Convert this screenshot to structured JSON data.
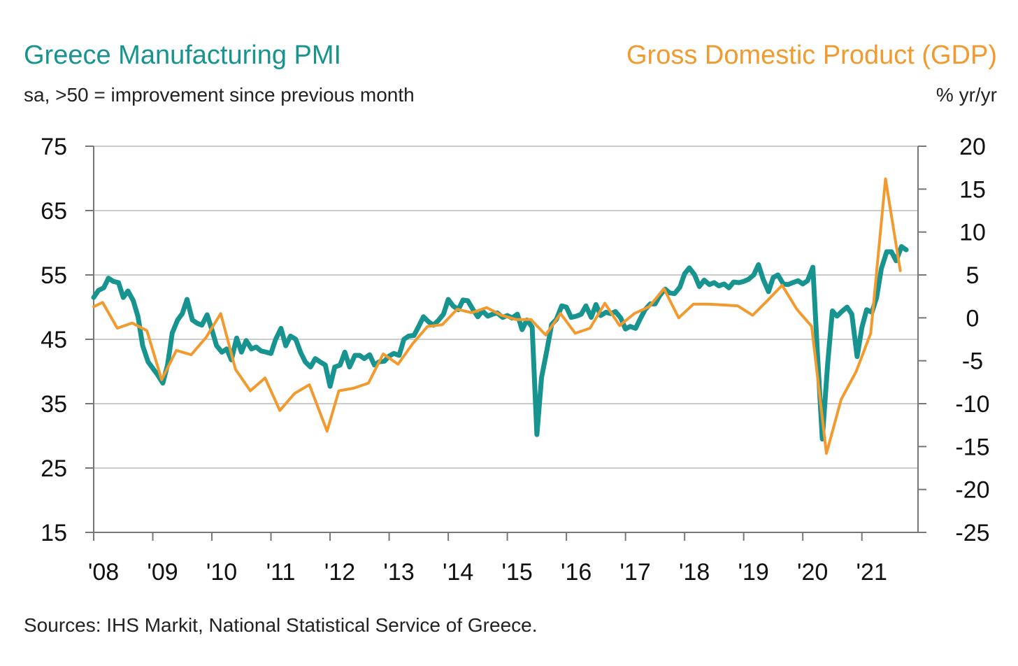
{
  "header": {
    "left_title": "Greece Manufacturing PMI",
    "left_subtitle": "sa, >50 = improvement since previous month",
    "right_title": "Gross Domestic Product (GDP)",
    "right_subtitle": "% yr/yr"
  },
  "footer": {
    "sources": "Sources: IHS Markit, National Statistical Service of Greece."
  },
  "colors": {
    "pmi": "#17948f",
    "gdp": "#f29a2e",
    "grid": "#cccccc",
    "axis": "#777777"
  },
  "chart_data": {
    "type": "line",
    "x_unit": "year (decimal)",
    "xlim": [
      2008.0,
      2021.95
    ],
    "x_ticks": [
      {
        "value": 2008,
        "label": "'08"
      },
      {
        "value": 2009,
        "label": "'09"
      },
      {
        "value": 2010,
        "label": "'10"
      },
      {
        "value": 2011,
        "label": "'11"
      },
      {
        "value": 2012,
        "label": "'12"
      },
      {
        "value": 2013,
        "label": "'13"
      },
      {
        "value": 2014,
        "label": "'14"
      },
      {
        "value": 2015,
        "label": "'15"
      },
      {
        "value": 2016,
        "label": "'16"
      },
      {
        "value": 2017,
        "label": "'17"
      },
      {
        "value": 2018,
        "label": "'18"
      },
      {
        "value": 2019,
        "label": "'19"
      },
      {
        "value": 2020,
        "label": "'20"
      },
      {
        "value": 2021,
        "label": "'21"
      }
    ],
    "y_left": {
      "lim": [
        15,
        75
      ],
      "ticks": [
        15,
        25,
        35,
        45,
        55,
        65,
        75
      ]
    },
    "y_right": {
      "lim": [
        -25,
        20
      ],
      "ticks": [
        -25,
        -20,
        -15,
        -10,
        -5,
        0,
        5,
        10,
        15,
        20
      ]
    },
    "grid": true,
    "series": [
      {
        "name": "Greece Manufacturing PMI",
        "axis": "left",
        "x": [
          2008.0,
          2008.08,
          2008.17,
          2008.25,
          2008.33,
          2008.42,
          2008.5,
          2008.58,
          2008.67,
          2008.75,
          2008.83,
          2008.92,
          2009.0,
          2009.08,
          2009.17,
          2009.25,
          2009.33,
          2009.42,
          2009.5,
          2009.58,
          2009.67,
          2009.75,
          2009.83,
          2009.92,
          2010.0,
          2010.08,
          2010.17,
          2010.25,
          2010.33,
          2010.42,
          2010.5,
          2010.58,
          2010.67,
          2010.75,
          2010.83,
          2010.92,
          2011.0,
          2011.08,
          2011.17,
          2011.25,
          2011.33,
          2011.42,
          2011.5,
          2011.58,
          2011.67,
          2011.75,
          2011.83,
          2011.92,
          2012.0,
          2012.08,
          2012.17,
          2012.25,
          2012.33,
          2012.42,
          2012.5,
          2012.58,
          2012.67,
          2012.75,
          2012.83,
          2012.92,
          2013.0,
          2013.08,
          2013.17,
          2013.25,
          2013.33,
          2013.42,
          2013.5,
          2013.58,
          2013.67,
          2013.75,
          2013.83,
          2013.92,
          2014.0,
          2014.08,
          2014.17,
          2014.25,
          2014.33,
          2014.42,
          2014.5,
          2014.58,
          2014.67,
          2014.75,
          2014.83,
          2014.92,
          2015.0,
          2015.08,
          2015.17,
          2015.25,
          2015.33,
          2015.42,
          2015.5,
          2015.58,
          2015.67,
          2015.75,
          2015.83,
          2015.92,
          2016.0,
          2016.08,
          2016.17,
          2016.25,
          2016.33,
          2016.42,
          2016.5,
          2016.58,
          2016.67,
          2016.75,
          2016.83,
          2016.92,
          2017.0,
          2017.08,
          2017.17,
          2017.25,
          2017.33,
          2017.42,
          2017.5,
          2017.58,
          2017.67,
          2017.75,
          2017.83,
          2017.92,
          2018.0,
          2018.08,
          2018.17,
          2018.25,
          2018.33,
          2018.42,
          2018.5,
          2018.58,
          2018.67,
          2018.75,
          2018.83,
          2018.92,
          2019.0,
          2019.08,
          2019.17,
          2019.25,
          2019.33,
          2019.42,
          2019.5,
          2019.58,
          2019.67,
          2019.75,
          2019.83,
          2019.92,
          2020.0,
          2020.08,
          2020.17,
          2020.25,
          2020.33,
          2020.42,
          2020.5,
          2020.58,
          2020.67,
          2020.75,
          2020.83,
          2020.92,
          2021.0,
          2021.08,
          2021.17,
          2021.25,
          2021.33,
          2021.42,
          2021.5,
          2021.58,
          2021.67,
          2021.75
        ],
        "y": [
          51.5,
          52.6,
          53.0,
          54.5,
          54.0,
          53.8,
          51.5,
          52.5,
          51.0,
          48.5,
          44.0,
          41.5,
          40.5,
          39.5,
          38.2,
          41.0,
          46.0,
          48.0,
          49.0,
          51.2,
          48.0,
          47.5,
          47.2,
          48.8,
          46.5,
          44.0,
          43.0,
          43.5,
          41.8,
          45.2,
          43.0,
          44.8,
          43.5,
          43.8,
          43.2,
          43.0,
          42.8,
          45.0,
          46.7,
          44.0,
          45.5,
          45.0,
          43.0,
          41.5,
          40.7,
          42.0,
          41.5,
          41.0,
          37.7,
          40.7,
          41.0,
          43.0,
          40.7,
          42.5,
          42.5,
          42.0,
          42.6,
          41.0,
          41.5,
          41.6,
          42.4,
          42.8,
          42.5,
          45.0,
          45.5,
          45.6,
          47.0,
          48.5,
          47.7,
          47.2,
          47.9,
          48.9,
          51.2,
          50.2,
          49.6,
          51.1,
          51.0,
          49.6,
          48.5,
          49.4,
          48.6,
          48.9,
          49.1,
          48.4,
          48.7,
          48.3,
          48.9,
          46.5,
          48.0,
          46.9,
          30.2,
          39.1,
          43.3,
          47.3,
          48.1,
          50.2,
          50.0,
          48.4,
          48.6,
          48.9,
          50.2,
          48.4,
          50.4,
          48.7,
          49.2,
          49.0,
          49.3,
          48.3,
          46.6,
          47.0,
          46.7,
          48.2,
          49.6,
          50.5,
          50.5,
          51.8,
          52.8,
          52.2,
          52.1,
          53.1,
          55.2,
          56.1,
          55.0,
          53.2,
          54.2,
          53.5,
          53.8,
          53.3,
          53.6,
          53.0,
          53.9,
          53.8,
          54.0,
          54.3,
          55.0,
          56.6,
          54.3,
          52.4,
          54.6,
          55.0,
          53.6,
          53.5,
          53.8,
          54.1,
          53.6,
          54.1,
          56.2,
          42.5,
          29.5,
          41.1,
          49.4,
          48.6,
          49.4,
          50.0,
          48.9,
          42.3,
          46.8,
          49.6,
          49.2,
          51.5,
          56.0,
          58.6,
          58.6,
          57.2,
          59.4,
          58.9
        ]
      },
      {
        "name": "Gross Domestic Product (GDP)",
        "axis": "right",
        "x": [
          2008.0,
          2008.15,
          2008.4,
          2008.65,
          2008.9,
          2009.15,
          2009.4,
          2009.65,
          2009.9,
          2010.15,
          2010.4,
          2010.65,
          2010.9,
          2011.15,
          2011.4,
          2011.65,
          2011.95,
          2012.15,
          2012.4,
          2012.65,
          2012.9,
          2013.15,
          2013.4,
          2013.65,
          2013.9,
          2014.15,
          2014.4,
          2014.65,
          2014.9,
          2015.15,
          2015.4,
          2015.65,
          2015.9,
          2016.15,
          2016.4,
          2016.65,
          2016.9,
          2017.15,
          2017.4,
          2017.65,
          2017.9,
          2018.15,
          2018.4,
          2018.65,
          2018.9,
          2019.15,
          2019.4,
          2019.65,
          2019.9,
          2020.15,
          2020.4,
          2020.65,
          2020.9,
          2021.15,
          2021.4,
          2021.65
        ],
        "y": [
          1.3,
          1.8,
          -1.2,
          -0.6,
          -1.5,
          -7.2,
          -3.8,
          -4.3,
          -2.3,
          0.5,
          -6.0,
          -8.5,
          -7.0,
          -10.8,
          -8.8,
          -7.8,
          -13.2,
          -8.5,
          -8.2,
          -7.6,
          -4.2,
          -5.4,
          -3.0,
          -1.0,
          -0.8,
          1.0,
          0.6,
          1.2,
          0.3,
          -0.2,
          -0.2,
          -2.0,
          0.5,
          -1.8,
          -1.2,
          1.7,
          -0.9,
          0.5,
          1.3,
          3.4,
          0.0,
          1.6,
          1.6,
          1.5,
          1.4,
          0.3,
          2.0,
          3.8,
          1.0,
          -1.0,
          -15.8,
          -9.5,
          -6.3,
          -1.8,
          16.2,
          5.5
        ]
      }
    ]
  }
}
